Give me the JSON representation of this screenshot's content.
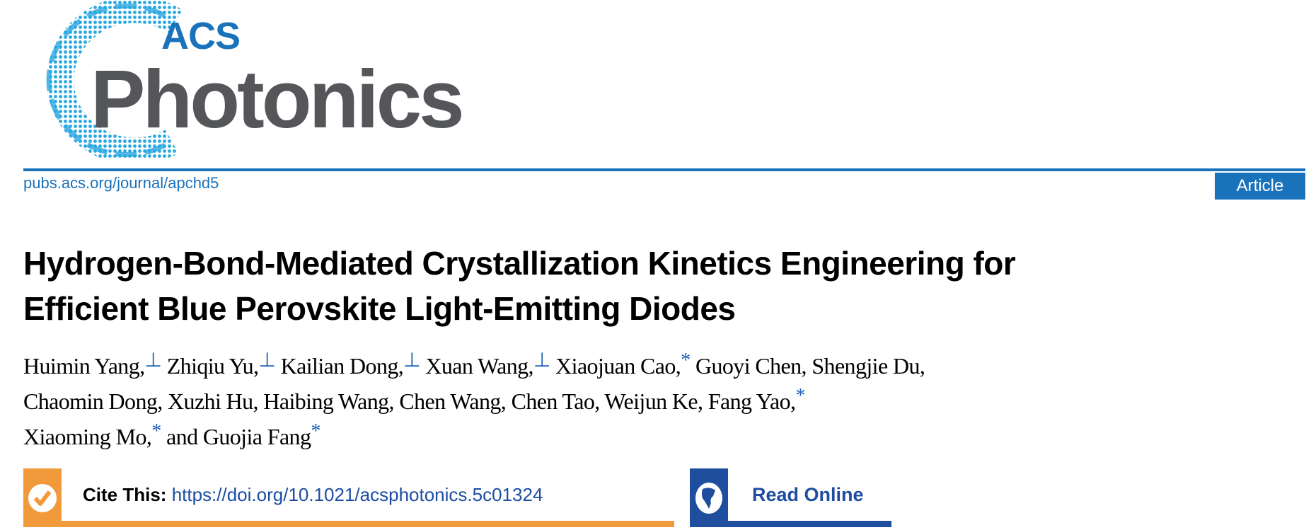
{
  "header": {
    "logo": {
      "line1": "ACS",
      "line2": "Photonics"
    },
    "journal_url": "pubs.acs.org/journal/apchd5",
    "article_type": "Article",
    "colors": {
      "brand_blue": "#1a72bb",
      "logo_gray": "#55565a",
      "cite_orange": "#f09a3c",
      "read_online_blue": "#1f4e9f"
    }
  },
  "article": {
    "title_lines": [
      "Hydrogen-Bond-Mediated Crystallization Kinetics Engineering for",
      "Efficient Blue Perovskite Light-Emitting Diodes"
    ],
    "author_lines": [
      [
        {
          "name": "Huimin Yang,",
          "mark": "⊥"
        },
        {
          "name": "Zhiqiu Yu,",
          "mark": "⊥"
        },
        {
          "name": "Kailian Dong,",
          "mark": "⊥"
        },
        {
          "name": "Xuan Wang,",
          "mark": "⊥"
        },
        {
          "name": "Xiaojuan Cao,",
          "mark": "*"
        },
        {
          "name": "Guoyi Chen,",
          "mark": ""
        },
        {
          "name": "Shengjie Du,",
          "mark": ""
        }
      ],
      [
        {
          "name": "Chaomin Dong,",
          "mark": ""
        },
        {
          "name": "Xuzhi Hu,",
          "mark": ""
        },
        {
          "name": "Haibing Wang,",
          "mark": ""
        },
        {
          "name": "Chen Wang,",
          "mark": ""
        },
        {
          "name": "Chen Tao,",
          "mark": ""
        },
        {
          "name": "Weijun Ke,",
          "mark": ""
        },
        {
          "name": "Fang Yao,",
          "mark": "*"
        }
      ],
      [
        {
          "name": "Xiaoming Mo,",
          "mark": "*"
        },
        {
          "name": "and Guojia Fang",
          "mark": "*"
        }
      ]
    ]
  },
  "actions": {
    "cite_label": "Cite This:",
    "cite_doi": "https://doi.org/10.1021/acsphotonics.5c01324",
    "cite_icon": "checkmark-circle-icon",
    "read_online_label": "Read Online",
    "read_online_icon": "globe-icon"
  }
}
